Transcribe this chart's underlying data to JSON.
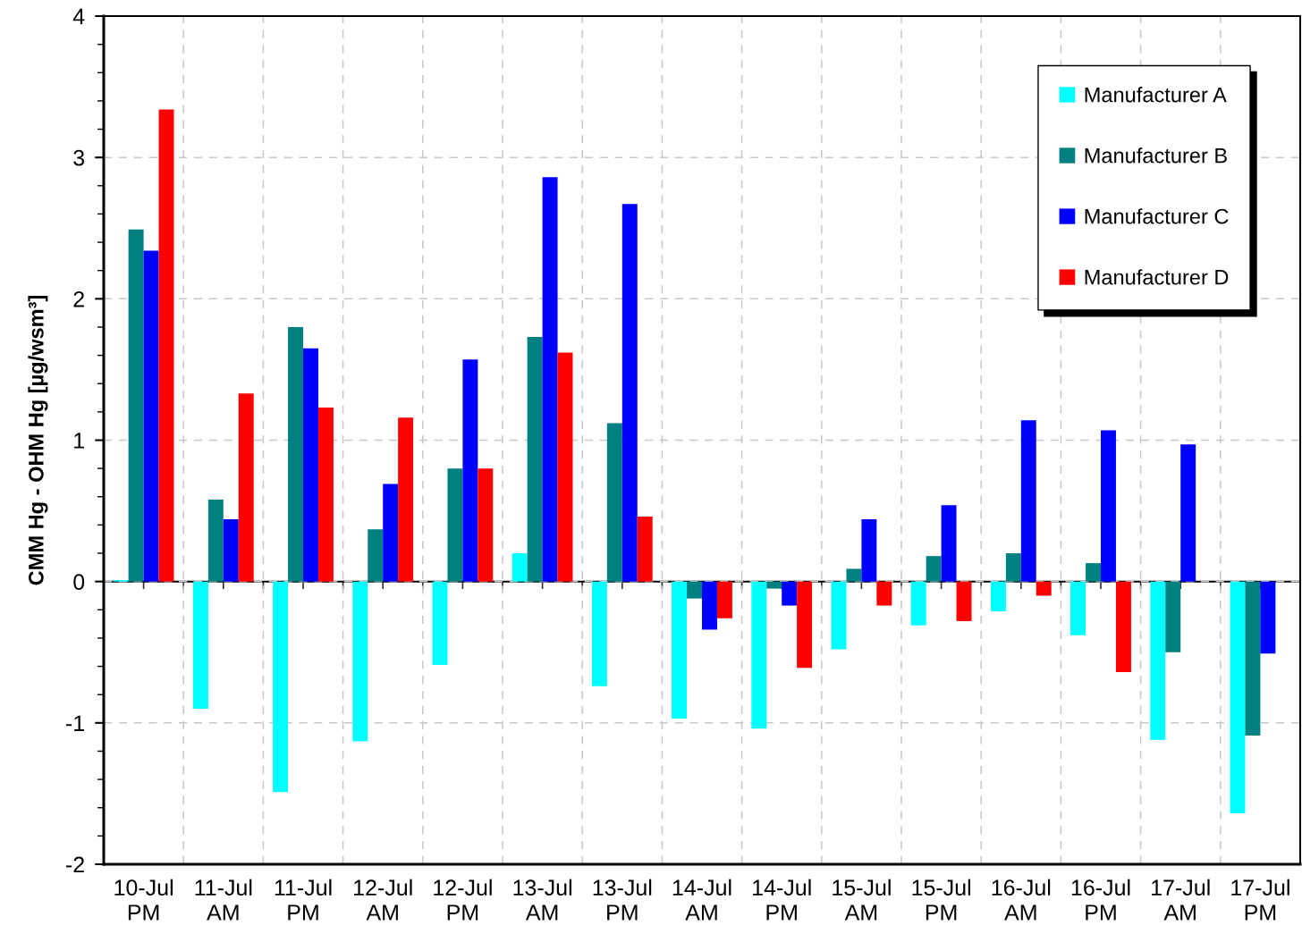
{
  "chart_data": {
    "type": "bar",
    "ylabel": "CMM Hg - OHM Hg [µg/wsm³]",
    "categories": [
      "10-Jul\nPM",
      "11-Jul\nAM",
      "11-Jul\nPM",
      "12-Jul\nAM",
      "12-Jul\nPM",
      "13-Jul\nAM",
      "13-Jul\nPM",
      "14-Jul\nAM",
      "14-Jul\nPM",
      "15-Jul\nAM",
      "15-Jul\nPM",
      "16-Jul\nAM",
      "16-Jul\nPM",
      "17-Jul\nAM",
      "17-Jul\nPM"
    ],
    "series": [
      {
        "name": "Manufacturer A",
        "color": "#00ffff",
        "values": [
          0.01,
          -0.9,
          -1.49,
          -1.13,
          -0.59,
          0.2,
          -0.74,
          -0.97,
          -1.04,
          -0.48,
          -0.31,
          -0.21,
          -0.38,
          -1.12,
          -1.64
        ]
      },
      {
        "name": "Manufacturer B",
        "color": "#008080",
        "values": [
          2.49,
          0.58,
          1.8,
          0.37,
          0.8,
          1.73,
          1.12,
          -0.12,
          -0.05,
          0.09,
          0.18,
          0.2,
          0.13,
          -0.5,
          -1.09
        ]
      },
      {
        "name": "Manufacturer C",
        "color": "#0000ff",
        "values": [
          2.34,
          0.44,
          1.65,
          0.69,
          1.57,
          2.86,
          2.67,
          -0.34,
          -0.17,
          0.44,
          0.54,
          1.14,
          1.07,
          0.97,
          -0.51
        ]
      },
      {
        "name": "Manufacturer D",
        "color": "#ff0000",
        "values": [
          3.34,
          1.33,
          1.23,
          1.16,
          0.8,
          1.62,
          0.46,
          -0.26,
          -0.61,
          -0.17,
          -0.28,
          -0.1,
          -0.64,
          null,
          null
        ]
      }
    ],
    "ylim": [
      -2,
      4
    ],
    "yticks": [
      -2,
      {
        "value": -1.8,
        "label": null
      },
      {
        "value": -1.6,
        "label": null
      },
      {
        "value": -1.4,
        "label": null
      },
      {
        "value": -1.2,
        "label": null
      },
      -1,
      {
        "value": -0.8,
        "label": null
      },
      {
        "value": -0.6,
        "label": null
      },
      {
        "value": -0.4,
        "label": null
      },
      {
        "value": -0.2,
        "label": null
      },
      0,
      {
        "value": 0.2,
        "label": null
      },
      {
        "value": 0.4,
        "label": null
      },
      {
        "value": 0.6,
        "label": null
      },
      {
        "value": 0.8,
        "label": null
      },
      1,
      {
        "value": 1.2,
        "label": null
      },
      {
        "value": 1.4,
        "label": null
      },
      {
        "value": 1.6,
        "label": null
      },
      {
        "value": 1.8,
        "label": null
      },
      2,
      {
        "value": 2.2,
        "label": null
      },
      {
        "value": 2.4,
        "label": null
      },
      {
        "value": 2.6,
        "label": null
      },
      {
        "value": 2.8,
        "label": null
      },
      3,
      {
        "value": 3.2,
        "label": null
      },
      {
        "value": 3.4,
        "label": null
      },
      {
        "value": 3.6,
        "label": null
      },
      {
        "value": 3.8,
        "label": null
      },
      4
    ],
    "grid": true,
    "legend": "top right"
  }
}
